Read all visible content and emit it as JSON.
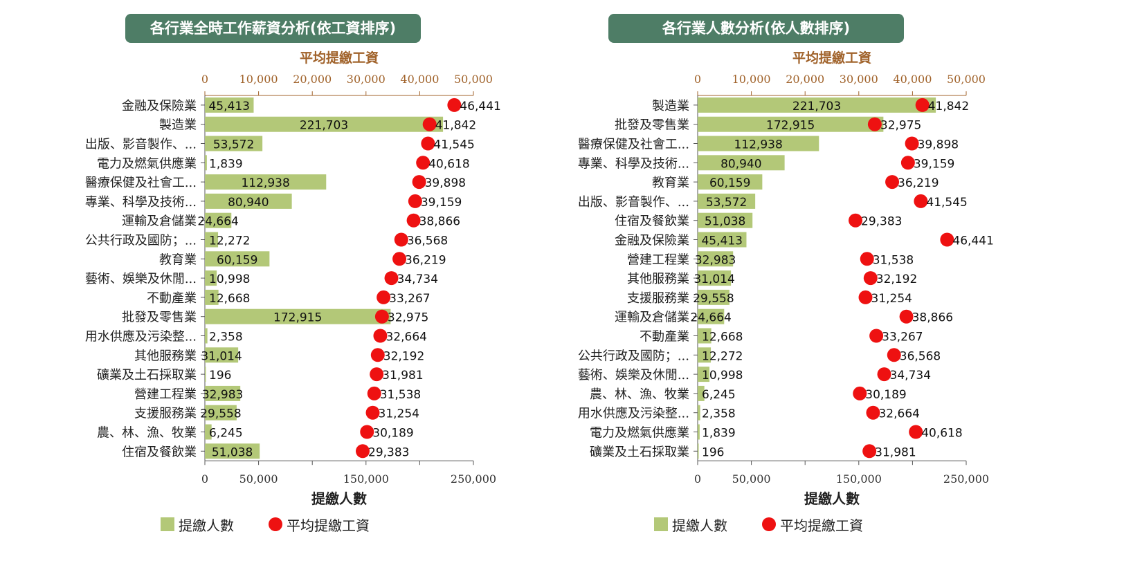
{
  "legend": {
    "bar_label": "提繳人數",
    "dot_label": "平均提繳工資"
  },
  "colors": {
    "bar": "#b3c878",
    "dot": "#ee1111",
    "title_bg": "#4e7d66",
    "top_axis": "#a0622a"
  },
  "chart_data": [
    {
      "type": "bar",
      "title": "各行業全時工作薪資分析(依工資排序)",
      "top_axis_label": "平均提繳工資",
      "bottom_axis_label": "提繳人數",
      "top_ticks": [
        "0",
        "10,000",
        "20,000",
        "30,000",
        "40,000",
        "50,000"
      ],
      "bottom_ticks": [
        "0",
        "50,000",
        "150,000",
        "250,000"
      ],
      "xlim_bars": [
        0,
        250000
      ],
      "xlim_wages": [
        0,
        50000
      ],
      "categories": [
        "金融及保險業",
        "製造業",
        "出版、影音製作、...",
        "電力及燃氣供應業",
        "醫療保健及社會工...",
        "專業、科學及技術...",
        "運輸及倉儲業",
        "公共行政及國防；...",
        "教育業",
        "藝術、娛樂及休閒...",
        "不動產業",
        "批發及零售業",
        "用水供應及污染整...",
        "其他服務業",
        "礦業及土石採取業",
        "營建工程業",
        "支援服務業",
        "農、林、漁、牧業",
        "住宿及餐飲業"
      ],
      "series": [
        {
          "name": "提繳人數",
          "values": [
            45413,
            221703,
            53572,
            1839,
            112938,
            80940,
            24664,
            12272,
            60159,
            10998,
            12668,
            172915,
            2358,
            31014,
            196,
            32983,
            29558,
            6245,
            51038
          ],
          "labels": [
            "45,413",
            "221,703",
            "53,572",
            "1,839",
            "112,938",
            "80,940",
            "24,664",
            "12,272",
            "60,159",
            "10,998",
            "12,668",
            "172,915",
            "2,358",
            "31,014",
            "196",
            "32,983",
            "29,558",
            "6,245",
            "51,038"
          ]
        },
        {
          "name": "平均提繳工資",
          "values": [
            46441,
            41842,
            41545,
            40618,
            39898,
            39159,
            38866,
            36568,
            36219,
            34734,
            33267,
            32975,
            32664,
            32192,
            31981,
            31538,
            31254,
            30189,
            29383
          ],
          "labels": [
            "46,441",
            "41,842",
            "41,545",
            "40,618",
            "39,898",
            "39,159",
            "38,866",
            "36,568",
            "36,219",
            "34,734",
            "33,267",
            "32,975",
            "32,664",
            "32,192",
            "31,981",
            "31,538",
            "31,254",
            "30,189",
            "29,383"
          ]
        }
      ]
    },
    {
      "type": "bar",
      "title": "各行業人數分析(依人數排序)",
      "top_axis_label": "平均提繳工資",
      "bottom_axis_label": "提繳人數",
      "top_ticks": [
        "0",
        "10,000",
        "20,000",
        "30,000",
        "40,000",
        "50,000"
      ],
      "bottom_ticks": [
        "0",
        "50,000",
        "150,000",
        "250,000"
      ],
      "xlim_bars": [
        0,
        250000
      ],
      "xlim_wages": [
        0,
        50000
      ],
      "categories": [
        "製造業",
        "批發及零售業",
        "醫療保健及社會工...",
        "專業、科學及技術...",
        "教育業",
        "出版、影音製作、...",
        "住宿及餐飲業",
        "金融及保險業",
        "營建工程業",
        "其他服務業",
        "支援服務業",
        "運輸及倉儲業",
        "不動產業",
        "公共行政及國防；...",
        "藝術、娛樂及休閒...",
        "農、林、漁、牧業",
        "用水供應及污染整...",
        "電力及燃氣供應業",
        "礦業及土石採取業"
      ],
      "series": [
        {
          "name": "提繳人數",
          "values": [
            221703,
            172915,
            112938,
            80940,
            60159,
            53572,
            51038,
            45413,
            32983,
            31014,
            29558,
            24664,
            12668,
            12272,
            10998,
            6245,
            2358,
            1839,
            196
          ],
          "labels": [
            "221,703",
            "172,915",
            "112,938",
            "80,940",
            "60,159",
            "53,572",
            "51,038",
            "45,413",
            "32,983",
            "31,014",
            "29,558",
            "24,664",
            "12,668",
            "12,272",
            "10,998",
            "6,245",
            "2,358",
            "1,839",
            "196"
          ]
        },
        {
          "name": "平均提繳工資",
          "values": [
            41842,
            32975,
            39898,
            39159,
            36219,
            41545,
            29383,
            46441,
            31538,
            32192,
            31254,
            38866,
            33267,
            36568,
            34734,
            30189,
            32664,
            40618,
            31981
          ],
          "labels": [
            "41,842",
            "32,975",
            "39,898",
            "39,159",
            "36,219",
            "41,545",
            "29,383",
            "46,441",
            "31,538",
            "32,192",
            "31,254",
            "38,866",
            "33,267",
            "36,568",
            "34,734",
            "30,189",
            "32,664",
            "40,618",
            "31,981"
          ]
        }
      ]
    }
  ]
}
